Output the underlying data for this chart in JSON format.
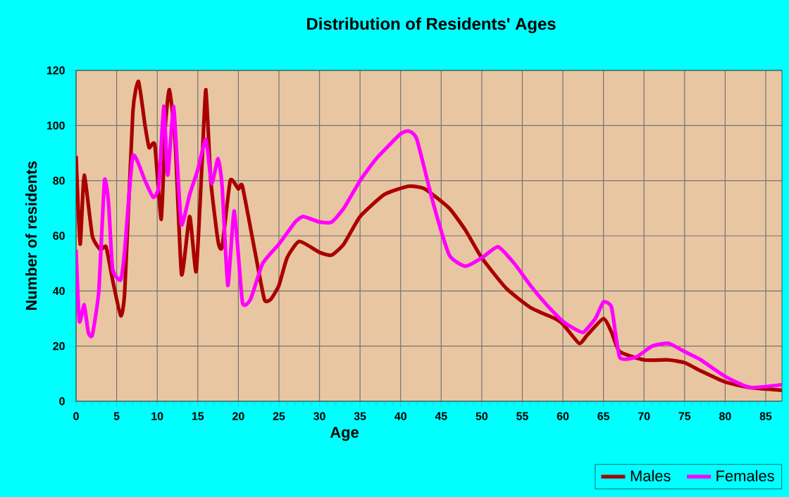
{
  "chart_data": {
    "type": "line",
    "title": "Distribution of Residents' Ages",
    "xlabel": "Age",
    "ylabel": "Number of residents",
    "xlim": [
      0,
      87
    ],
    "xticks": [
      0,
      5,
      10,
      15,
      20,
      25,
      30,
      35,
      40,
      45,
      50,
      55,
      60,
      65,
      70,
      75,
      80,
      85
    ],
    "ylim": [
      0,
      120
    ],
    "yticks": [
      0,
      20,
      40,
      60,
      80,
      100,
      120
    ],
    "grid": true,
    "legend": "bottom right",
    "series": [
      {
        "name": "Males",
        "color": "#aa0000",
        "x": [
          0,
          0.5,
          1,
          2,
          3,
          3.7,
          4.5,
          5.5,
          6,
          7,
          7.7,
          8.5,
          9,
          9.7,
          10.5,
          11,
          11.5,
          12.2,
          13,
          14,
          14.8,
          15.5,
          16,
          16.6,
          17.5,
          18,
          19,
          20,
          20.5,
          22,
          23.2,
          24,
          25,
          26,
          27.5,
          30,
          31.5,
          33,
          35,
          38,
          41,
          43,
          46,
          48,
          50,
          53,
          56,
          59,
          60,
          62,
          63,
          65,
          66,
          67,
          70,
          73,
          75,
          77,
          80,
          83,
          87
        ],
        "values": [
          89,
          57,
          82,
          60,
          55,
          56,
          44,
          31,
          40,
          105,
          116,
          100,
          92,
          93,
          66,
          100,
          113,
          95,
          46,
          67,
          47,
          85,
          113,
          80,
          58,
          56,
          80,
          77,
          78,
          55,
          37,
          37,
          42,
          52,
          58,
          54,
          53,
          57,
          67,
          75,
          78,
          77,
          70,
          62,
          52,
          41,
          34,
          30,
          28,
          21,
          24,
          30,
          25,
          18,
          15,
          15,
          14,
          11,
          7,
          5,
          4
        ]
      },
      {
        "name": "Females",
        "color": "#ff00ff",
        "x": [
          0,
          0.4,
          1,
          1.5,
          2,
          2.8,
          3.5,
          4,
          4.5,
          5.5,
          6,
          7,
          8.5,
          9.5,
          10.2,
          10.8,
          11.3,
          12,
          12.5,
          13,
          14,
          15,
          16,
          16.7,
          17.5,
          18,
          18.7,
          19.5,
          20.5,
          21.5,
          23,
          25,
          27,
          28,
          30,
          31.5,
          33,
          35,
          37,
          40,
          41,
          42,
          44,
          46,
          48,
          50,
          52,
          54,
          56,
          58,
          60,
          61,
          62.5,
          64,
          65,
          66,
          67,
          69,
          71,
          73,
          75,
          77,
          80,
          83,
          87
        ],
        "values": [
          55,
          29,
          35,
          25,
          24,
          40,
          80,
          72,
          48,
          44,
          55,
          89,
          80,
          74,
          78,
          107,
          82,
          107,
          85,
          64,
          75,
          84,
          95,
          79,
          88,
          78,
          42,
          69,
          36,
          37,
          50,
          57,
          65,
          67,
          65,
          65,
          70,
          80,
          88,
          97,
          98,
          95,
          72,
          53,
          49,
          52,
          56,
          50,
          42,
          35,
          29,
          27,
          25,
          30,
          36,
          34,
          16,
          16,
          20,
          21,
          18,
          15,
          9,
          5,
          6
        ]
      }
    ]
  }
}
